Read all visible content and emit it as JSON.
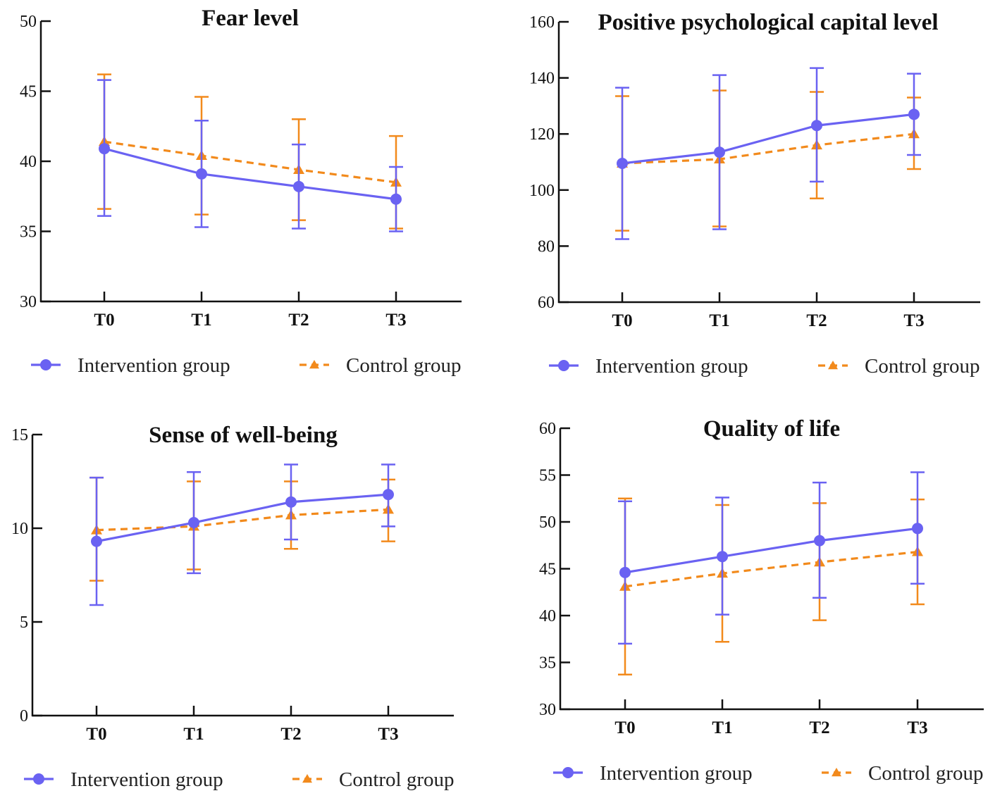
{
  "colors": {
    "intervention": "#6a62f2",
    "control": "#f28a1c",
    "axis": "#111111"
  },
  "legend": {
    "intervention_label": "Intervention group",
    "control_label": "Control group"
  },
  "chart_data": [
    {
      "type": "line",
      "title": "Fear level",
      "categories": [
        "T0",
        "T1",
        "T2",
        "T3"
      ],
      "ylim": [
        30,
        50
      ],
      "yticks": [
        30,
        35,
        40,
        45,
        50
      ],
      "xlabel": "",
      "ylabel": "",
      "series": [
        {
          "name": "Intervention group",
          "values": [
            40.9,
            39.1,
            38.2,
            37.3
          ],
          "err_low": [
            36.1,
            35.3,
            35.2,
            35.0
          ],
          "err_high": [
            45.8,
            42.9,
            41.2,
            39.6
          ]
        },
        {
          "name": "Control group",
          "values": [
            41.4,
            40.4,
            39.4,
            38.5
          ],
          "err_low": [
            36.6,
            36.2,
            35.8,
            35.2
          ],
          "err_high": [
            46.2,
            44.6,
            43.0,
            41.8
          ]
        }
      ]
    },
    {
      "type": "line",
      "title": "Positive psychological capital level",
      "categories": [
        "T0",
        "T1",
        "T2",
        "T3"
      ],
      "ylim": [
        60,
        160
      ],
      "yticks": [
        60,
        80,
        100,
        120,
        140,
        160
      ],
      "xlabel": "",
      "ylabel": "",
      "series": [
        {
          "name": "Intervention group",
          "values": [
            109.5,
            113.5,
            123.0,
            127.0
          ],
          "err_low": [
            82.5,
            86.0,
            103.0,
            112.5
          ],
          "err_high": [
            136.5,
            141.0,
            143.5,
            141.5
          ]
        },
        {
          "name": "Control group",
          "values": [
            109.5,
            111.0,
            116.0,
            120.0
          ],
          "err_low": [
            85.5,
            87.0,
            97.0,
            107.5
          ],
          "err_high": [
            133.5,
            135.5,
            135.0,
            133.0
          ]
        }
      ]
    },
    {
      "type": "line",
      "title": "Sense of well-being",
      "categories": [
        "T0",
        "T1",
        "T2",
        "T3"
      ],
      "ylim": [
        0,
        15
      ],
      "yticks": [
        0,
        5,
        10,
        15
      ],
      "xlabel": "",
      "ylabel": "",
      "series": [
        {
          "name": "Intervention group",
          "values": [
            9.3,
            10.3,
            11.4,
            11.8
          ],
          "err_low": [
            5.9,
            7.6,
            9.4,
            10.1
          ],
          "err_high": [
            12.7,
            13.0,
            13.4,
            13.4
          ]
        },
        {
          "name": "Control group",
          "values": [
            9.9,
            10.1,
            10.7,
            11.0
          ],
          "err_low": [
            7.2,
            7.8,
            8.9,
            9.3
          ],
          "err_high": [
            12.7,
            12.5,
            12.5,
            12.6
          ]
        }
      ]
    },
    {
      "type": "line",
      "title": "Quality of life",
      "categories": [
        "T0",
        "T1",
        "T2",
        "T3"
      ],
      "ylim": [
        30,
        60
      ],
      "yticks": [
        30,
        35,
        40,
        45,
        50,
        55,
        60
      ],
      "xlabel": "",
      "ylabel": "",
      "series": [
        {
          "name": "Intervention group",
          "values": [
            44.6,
            46.3,
            48.0,
            49.3
          ],
          "err_low": [
            37.0,
            40.1,
            41.9,
            43.4
          ],
          "err_high": [
            52.2,
            52.6,
            54.2,
            55.3
          ]
        },
        {
          "name": "Control group",
          "values": [
            43.1,
            44.5,
            45.7,
            46.8
          ],
          "err_low": [
            33.7,
            37.2,
            39.5,
            41.2
          ],
          "err_high": [
            52.5,
            51.8,
            52.0,
            52.4
          ]
        }
      ]
    }
  ]
}
